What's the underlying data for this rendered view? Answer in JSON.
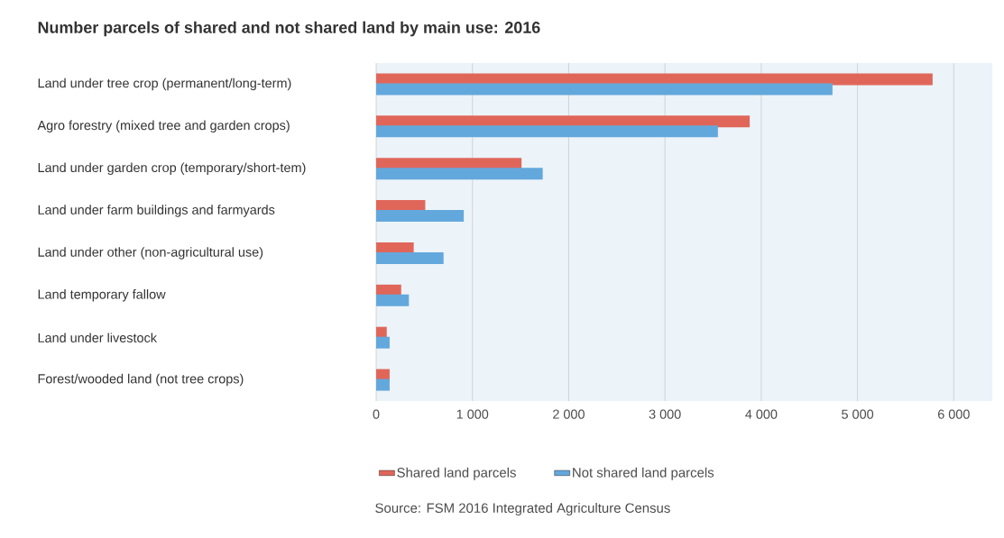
{
  "chart_data": {
    "type": "bar",
    "orientation": "horizontal",
    "title": "Number parcels of shared and not shared land by main use: 2016",
    "categories": [
      "Land under tree crop (permanent/long-term)",
      "Agro forestry (mixed tree and garden crops)",
      "Land under garden crop (temporary/short-tem)",
      "Land under farm buildings and farmyards",
      "Land under other (non-agricultural use)",
      "Land temporary fallow",
      "Land under livestock",
      "Forest/wooded land (not tree crops)"
    ],
    "series": [
      {
        "name": "Shared land parcels",
        "color": "#e0665a",
        "values": [
          5780,
          3880,
          1510,
          510,
          390,
          260,
          110,
          140
        ]
      },
      {
        "name": "Not shared land parcels",
        "color": "#63a8dc",
        "values": [
          4740,
          3550,
          1730,
          910,
          700,
          340,
          140,
          140
        ]
      }
    ],
    "xlim": [
      0,
      6400
    ],
    "xticks": [
      0,
      {
        "value": 1000,
        "label": "1 000"
      },
      {
        "value": 2000,
        "label": "2 000"
      },
      {
        "value": 3000,
        "label": "3 000"
      },
      {
        "value": 4000,
        "label": "4 000"
      },
      {
        "value": 5000,
        "label": "5 000"
      },
      {
        "value": 6000,
        "label": "6 000"
      }
    ],
    "grid": "x",
    "legend": "bottom",
    "annotations": [
      "Source: FSM 2016 Integrated Agriculture Census"
    ]
  }
}
